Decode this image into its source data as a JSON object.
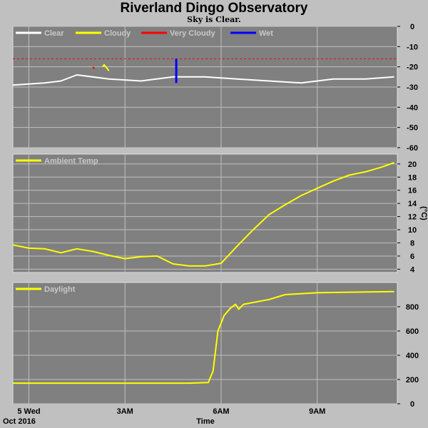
{
  "title": "Riverland Dingo Observatory",
  "subtitle": "Sky is Clear.",
  "x_axis": {
    "date_label": "Oct 2016",
    "label": "Time",
    "ticks": [
      {
        "label": "5 Wed",
        "hour": 0
      },
      {
        "label": "3AM",
        "hour": 3
      },
      {
        "label": "6AM",
        "hour": 6
      },
      {
        "label": "9AM",
        "hour": 9
      }
    ],
    "range_hours": [
      -0.5,
      11.5
    ]
  },
  "colors": {
    "plot_bg": "#808080",
    "grid": "#c0c0c0",
    "frame": "#c0c0c0",
    "clear": "#ffffff",
    "cloudy": "#ffff00",
    "very_cloudy": "#ff0000",
    "wet": "#0000ff",
    "threshold": "#ff0000"
  },
  "chart_data": [
    {
      "type": "line",
      "panel": "sky",
      "ylabel": "",
      "ylim": [
        -60,
        0
      ],
      "yticks": [
        0,
        -10,
        -20,
        -30,
        -40,
        -50,
        -60
      ],
      "threshold": -16,
      "legend": [
        "Clear",
        "Cloudy",
        "Very Cloudy",
        "Wet"
      ],
      "series": [
        {
          "name": "Clear",
          "x": [
            -0.5,
            0.5,
            1.0,
            1.5,
            2.5,
            3.5,
            4.5,
            5.5,
            6.5,
            7.5,
            8.5,
            9.5,
            10.5,
            11.4
          ],
          "y": [
            -29,
            -28,
            -27,
            -24,
            -26,
            -27,
            -25,
            -25,
            -26,
            -27,
            -28,
            -26,
            -26,
            -25
          ]
        },
        {
          "name": "Cloudy",
          "x": [
            2.3,
            2.35,
            2.4,
            2.5
          ],
          "y": [
            -20,
            -19,
            -20,
            -22
          ]
        },
        {
          "name": "Very Cloudy",
          "x": [
            2.0,
            2.05
          ],
          "y": [
            -20,
            -21
          ]
        },
        {
          "name": "Wet",
          "x": [
            4.6,
            4.6
          ],
          "y": [
            -16,
            -28
          ]
        }
      ]
    },
    {
      "type": "line",
      "panel": "temp",
      "ylabel": "(°C)",
      "ylim": [
        3.5,
        21.5
      ],
      "yticks": [
        4,
        6,
        8,
        10,
        12,
        14,
        16,
        18,
        20
      ],
      "legend": [
        "Ambient Temp"
      ],
      "series": [
        {
          "name": "Ambient Temp",
          "x": [
            -0.5,
            0,
            0.5,
            1.0,
            1.5,
            2.0,
            2.5,
            3.0,
            3.5,
            4.0,
            4.5,
            5.0,
            5.5,
            6.0,
            6.5,
            7.0,
            7.5,
            8.0,
            8.5,
            9.0,
            9.5,
            10.0,
            10.5,
            11.0,
            11.4
          ],
          "y": [
            7.7,
            7.2,
            7.1,
            6.5,
            7.1,
            6.7,
            6.1,
            5.6,
            5.9,
            6.0,
            4.8,
            4.5,
            4.5,
            4.9,
            7.5,
            10.0,
            12.3,
            13.8,
            15.2,
            16.3,
            17.4,
            18.3,
            18.8,
            19.5,
            20.2
          ]
        }
      ]
    },
    {
      "type": "line",
      "panel": "daylight",
      "ylabel": "",
      "ylim": [
        0,
        1000
      ],
      "yticks": [
        0,
        200,
        400,
        600,
        800
      ],
      "legend": [
        "Daylight"
      ],
      "series": [
        {
          "name": "Daylight",
          "x": [
            -0.5,
            1.0,
            3.0,
            5.0,
            5.6,
            5.75,
            5.9,
            6.1,
            6.3,
            6.45,
            6.55,
            6.7,
            7.5,
            8.0,
            9.0,
            10.0,
            11.4
          ],
          "y": [
            170,
            170,
            170,
            170,
            175,
            270,
            600,
            730,
            790,
            820,
            780,
            820,
            860,
            900,
            915,
            920,
            925
          ]
        }
      ]
    }
  ]
}
